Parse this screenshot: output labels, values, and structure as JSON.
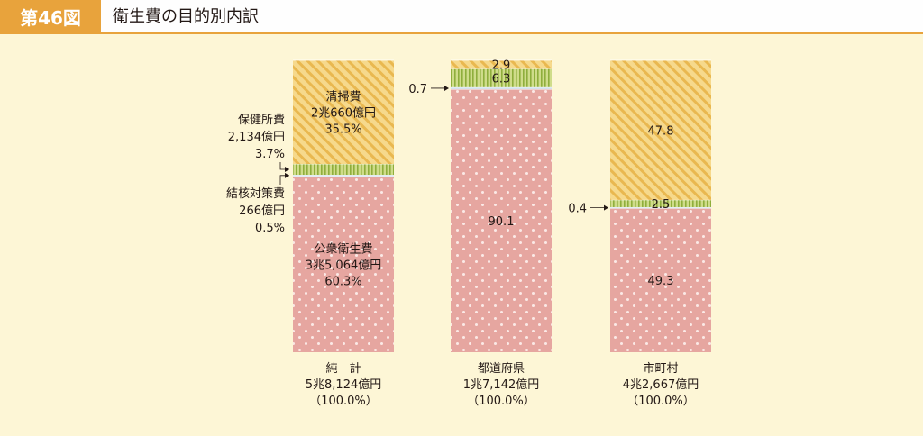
{
  "header": {
    "figure_number": "第46図",
    "title": "衛生費の目的別内訳"
  },
  "colors": {
    "accent": "#e8a33c",
    "background": "#fdf6d6",
    "cleaning": "#f0c96a",
    "health_center": "#b8cc66",
    "tuberculosis": "#c8dce8",
    "public_health": "#e6a6a0"
  },
  "chart_data": {
    "type": "bar",
    "stacked": true,
    "unit": "%",
    "categories": [
      "純　計",
      "都道府県",
      "市町村"
    ],
    "category_totals": [
      [
        "純　計",
        "5兆8,124億円",
        "（100.0%）"
      ],
      [
        "都道府県",
        "1兆7,142億円",
        "（100.0%）"
      ],
      [
        "市町村",
        "4兆2,667億円",
        "（100.0%）"
      ]
    ],
    "ylim": [
      0,
      100
    ],
    "series": [
      {
        "key": "public_health",
        "values": [
          60.3,
          90.1,
          49.3
        ],
        "labels": [
          [
            "公衆衛生費",
            "3兆5,064億円",
            "60.3%"
          ],
          [
            "90.1"
          ],
          [
            "49.3"
          ]
        ]
      },
      {
        "key": "tuberculosis",
        "values": [
          0.5,
          0.7,
          0.4
        ],
        "labels": [
          [],
          [],
          []
        ]
      },
      {
        "key": "health_center",
        "values": [
          3.7,
          6.3,
          2.5
        ],
        "labels": [
          [],
          [
            "6.3"
          ],
          [
            "2.5"
          ]
        ]
      },
      {
        "key": "cleaning",
        "values": [
          35.5,
          2.9,
          47.8
        ],
        "labels": [
          [
            "清掃費",
            "2兆660億円",
            "35.5%"
          ],
          [
            "2.9"
          ],
          [
            "47.8"
          ]
        ]
      }
    ],
    "side_annotations": {
      "health_center_total": [
        "保健所費",
        "2,134億円",
        "3.7%"
      ],
      "tuberculosis_total": [
        "結核対策費",
        "266億円",
        "0.5%"
      ],
      "prefecture_small": "0.7",
      "municipal_small": "0.4"
    }
  }
}
